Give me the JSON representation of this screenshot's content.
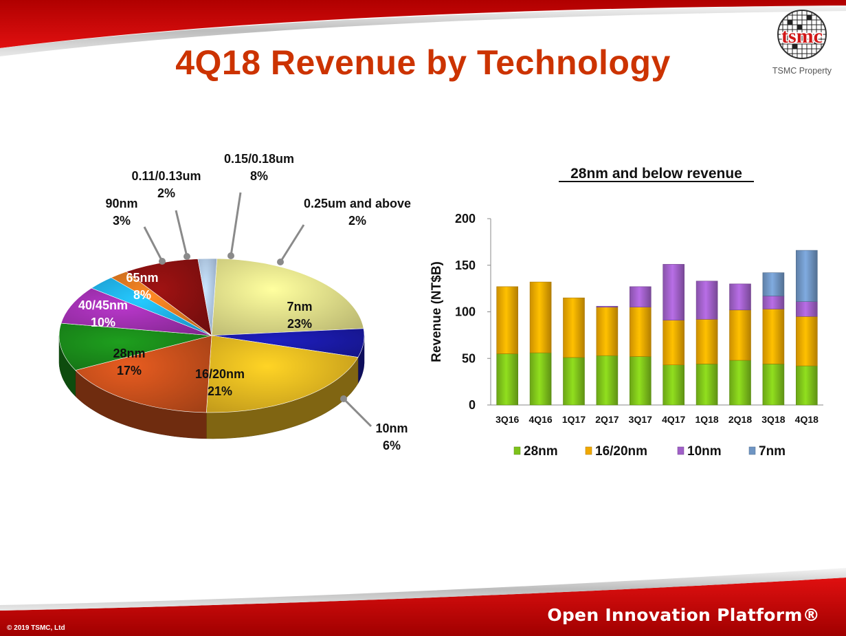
{
  "slide": {
    "title": "4Q18 Revenue by Technology",
    "logo_text": "tsmc",
    "logo_caption": "TSMC Property",
    "footer_brand": "Open Innovation Platform®",
    "copyright": "© 2019 TSMC, Ltd"
  },
  "chart_data": [
    {
      "type": "pie",
      "title": "",
      "slices": [
        {
          "label": "7nm",
          "value": 23,
          "display": "23%",
          "color": "#e3e08a"
        },
        {
          "label": "10nm",
          "value": 6,
          "display": "6%",
          "color": "#1a1aa8"
        },
        {
          "label": "16/20nm",
          "value": 21,
          "display": "21%",
          "color": "#e8b820"
        },
        {
          "label": "28nm",
          "value": 17,
          "display": "17%",
          "color": "#c9501c"
        },
        {
          "label": "40/45nm",
          "value": 10,
          "display": "10%",
          "color": "#1a8a1a"
        },
        {
          "label": "65nm",
          "value": 8,
          "display": "8%",
          "color": "#a030b0"
        },
        {
          "label": "90nm",
          "value": 3,
          "display": "3%",
          "color": "#20b0f0"
        },
        {
          "label": "0.11/0.13um",
          "value": 2,
          "display": "2%",
          "color": "#e07820"
        },
        {
          "label": "0.15/0.18um",
          "value": 8,
          "display": "8%",
          "color": "#8a1010"
        },
        {
          "label": "0.25um and above",
          "value": 2,
          "display": "2%",
          "color": "#b0c8e8"
        }
      ]
    },
    {
      "type": "bar",
      "stacked": true,
      "title": "28nm and below revenue",
      "xlabel": "",
      "ylabel": "Revenue (NT$B)",
      "ylim": [
        0,
        200
      ],
      "yticks": [
        0,
        50,
        100,
        150,
        200
      ],
      "legend_position": "bottom",
      "categories": [
        "3Q16",
        "4Q16",
        "1Q17",
        "2Q17",
        "3Q17",
        "4Q17",
        "1Q18",
        "2Q18",
        "3Q18",
        "4Q18"
      ],
      "series": [
        {
          "name": "28nm",
          "color": "#7ec21a",
          "values": [
            55,
            56,
            51,
            53,
            52,
            43,
            44,
            48,
            44,
            42
          ]
        },
        {
          "name": "16/20nm",
          "color": "#f0a800",
          "values": [
            72,
            76,
            64,
            52,
            53,
            48,
            48,
            54,
            59,
            53
          ]
        },
        {
          "name": "10nm",
          "color": "#a060c8",
          "values": [
            0,
            0,
            0,
            1,
            22,
            60,
            41,
            28,
            14,
            16
          ]
        },
        {
          "name": "7nm",
          "color": "#6f95c3",
          "values": [
            0,
            0,
            0,
            0,
            0,
            0,
            0,
            0,
            25,
            55
          ]
        }
      ]
    }
  ]
}
